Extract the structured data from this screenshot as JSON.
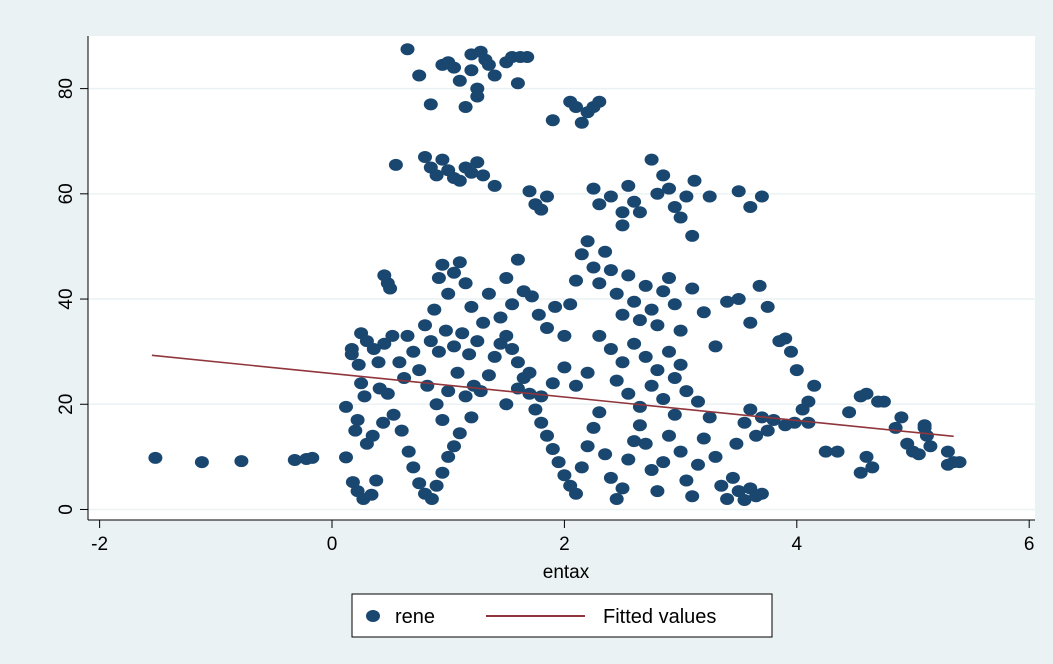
{
  "chart_data": {
    "type": "scatter",
    "title": "",
    "xlabel": "entax",
    "ylabel": "",
    "xlim": [
      -2.1,
      6.05
    ],
    "ylim": [
      -2,
      90
    ],
    "xticks": [
      -2,
      0,
      2,
      4,
      6
    ],
    "yticks": [
      0,
      20,
      40,
      60,
      80
    ],
    "xtick_labels": [
      "-2",
      "0",
      "2",
      "4",
      "6"
    ],
    "ytick_labels": [
      "0",
      "20",
      "40",
      "60",
      "80"
    ],
    "grid": "horizontal",
    "legend_position": "bottom",
    "colors": {
      "plot_bg": "#ffffff",
      "outer_bg": "#eaf2f3",
      "points": "#1a476f",
      "fit": "#90353b",
      "grid": "#eaf2f3"
    },
    "series": [
      {
        "name": "rene",
        "kind": "scatter",
        "points": [
          [
            -1.52,
            9.8
          ],
          [
            -1.12,
            9.0
          ],
          [
            -0.78,
            9.2
          ],
          [
            -0.32,
            9.4
          ],
          [
            -0.22,
            9.6
          ],
          [
            -0.17,
            9.8
          ],
          [
            0.12,
            9.9
          ],
          [
            0.12,
            19.5
          ],
          [
            0.17,
            29.5
          ],
          [
            0.17,
            30.5
          ],
          [
            0.23,
            27.5
          ],
          [
            0.25,
            24.0
          ],
          [
            0.28,
            21.5
          ],
          [
            0.22,
            17.0
          ],
          [
            0.2,
            15.0
          ],
          [
            0.18,
            5.2
          ],
          [
            0.22,
            3.5
          ],
          [
            0.27,
            2.0
          ],
          [
            0.34,
            2.8
          ],
          [
            0.38,
            5.5
          ],
          [
            0.3,
            12.5
          ],
          [
            0.35,
            14.0
          ],
          [
            0.44,
            16.5
          ],
          [
            0.41,
            23.0
          ],
          [
            0.36,
            30.5
          ],
          [
            0.45,
            31.5
          ],
          [
            0.52,
            33.0
          ],
          [
            0.58,
            28.0
          ],
          [
            0.62,
            25.0
          ],
          [
            0.48,
            22.0
          ],
          [
            0.53,
            18.0
          ],
          [
            0.6,
            15.0
          ],
          [
            0.66,
            11.0
          ],
          [
            0.7,
            8.0
          ],
          [
            0.75,
            5.0
          ],
          [
            0.8,
            3.0
          ],
          [
            0.86,
            2.0
          ],
          [
            0.9,
            4.5
          ],
          [
            0.95,
            7.0
          ],
          [
            1.0,
            10.0
          ],
          [
            1.05,
            12.0
          ],
          [
            1.1,
            14.5
          ],
          [
            1.2,
            17.5
          ],
          [
            1.28,
            22.5
          ],
          [
            1.35,
            25.5
          ],
          [
            1.4,
            29.0
          ],
          [
            1.45,
            31.5
          ],
          [
            1.5,
            33.0
          ],
          [
            1.55,
            30.5
          ],
          [
            1.6,
            28.0
          ],
          [
            1.65,
            25.0
          ],
          [
            1.7,
            22.0
          ],
          [
            1.75,
            19.0
          ],
          [
            1.8,
            16.5
          ],
          [
            1.85,
            14.0
          ],
          [
            1.9,
            11.5
          ],
          [
            1.95,
            9.0
          ],
          [
            2.0,
            6.5
          ],
          [
            2.05,
            4.5
          ],
          [
            2.1,
            3.0
          ],
          [
            2.15,
            8.0
          ],
          [
            2.2,
            12.0
          ],
          [
            2.25,
            15.5
          ],
          [
            2.3,
            18.5
          ],
          [
            2.35,
            10.5
          ],
          [
            2.4,
            6.0
          ],
          [
            2.45,
            2.0
          ],
          [
            2.5,
            4.0
          ],
          [
            2.55,
            9.5
          ],
          [
            2.6,
            13.0
          ],
          [
            2.65,
            16.0
          ],
          [
            2.7,
            12.5
          ],
          [
            2.75,
            7.5
          ],
          [
            2.8,
            3.5
          ],
          [
            2.85,
            9.0
          ],
          [
            2.9,
            14.0
          ],
          [
            2.95,
            18.0
          ],
          [
            3.0,
            11.0
          ],
          [
            3.05,
            5.5
          ],
          [
            3.1,
            2.5
          ],
          [
            3.15,
            8.5
          ],
          [
            3.2,
            13.5
          ],
          [
            3.25,
            17.5
          ],
          [
            3.3,
            10.0
          ],
          [
            3.35,
            4.5
          ],
          [
            3.4,
            2.0
          ],
          [
            3.45,
            6.0
          ],
          [
            3.5,
            3.5
          ],
          [
            3.55,
            1.8
          ],
          [
            3.6,
            4.0
          ],
          [
            3.65,
            2.5
          ],
          [
            3.7,
            3.0
          ],
          [
            3.48,
            12.5
          ],
          [
            3.55,
            16.5
          ],
          [
            3.6,
            19.0
          ],
          [
            3.65,
            14.0
          ],
          [
            3.7,
            17.5
          ],
          [
            3.75,
            15.0
          ],
          [
            3.8,
            17.0
          ],
          [
            3.9,
            16.0
          ],
          [
            3.98,
            16.5
          ],
          [
            0.92,
            44.0
          ],
          [
            0.95,
            46.5
          ],
          [
            1.0,
            41.0
          ],
          [
            1.05,
            45.0
          ],
          [
            1.1,
            47.0
          ],
          [
            1.15,
            43.0
          ],
          [
            1.2,
            38.5
          ],
          [
            0.88,
            38.0
          ],
          [
            0.8,
            35.0
          ],
          [
            0.85,
            32.0
          ],
          [
            0.92,
            30.0
          ],
          [
            0.98,
            34.0
          ],
          [
            1.05,
            31.0
          ],
          [
            1.12,
            33.5
          ],
          [
            1.18,
            29.5
          ],
          [
            1.25,
            32.0
          ],
          [
            1.3,
            35.5
          ],
          [
            1.35,
            41.0
          ],
          [
            1.45,
            36.5
          ],
          [
            1.5,
            44.0
          ],
          [
            1.55,
            39.0
          ],
          [
            1.6,
            47.5
          ],
          [
            1.65,
            41.5
          ],
          [
            1.72,
            40.5
          ],
          [
            1.78,
            37.0
          ],
          [
            1.85,
            34.5
          ],
          [
            1.92,
            38.5
          ],
          [
            2.0,
            33.0
          ],
          [
            2.05,
            39.0
          ],
          [
            2.1,
            43.5
          ],
          [
            2.15,
            48.5
          ],
          [
            2.2,
            51.0
          ],
          [
            2.25,
            46.0
          ],
          [
            2.3,
            43.0
          ],
          [
            2.35,
            49.0
          ],
          [
            2.4,
            45.5
          ],
          [
            2.45,
            41.0
          ],
          [
            2.5,
            37.0
          ],
          [
            2.55,
            44.5
          ],
          [
            2.6,
            39.5
          ],
          [
            2.65,
            36.0
          ],
          [
            2.7,
            42.5
          ],
          [
            2.75,
            38.0
          ],
          [
            2.8,
            35.0
          ],
          [
            2.85,
            41.5
          ],
          [
            2.9,
            44.0
          ],
          [
            2.95,
            39.0
          ],
          [
            3.0,
            34.0
          ],
          [
            3.1,
            42.0
          ],
          [
            3.2,
            37.5
          ],
          [
            3.3,
            31.0
          ],
          [
            3.4,
            39.5
          ],
          [
            3.5,
            40.0
          ],
          [
            3.6,
            35.5
          ],
          [
            3.68,
            42.5
          ],
          [
            3.75,
            38.5
          ],
          [
            2.3,
            33.0
          ],
          [
            2.4,
            30.5
          ],
          [
            2.5,
            28.0
          ],
          [
            2.6,
            31.5
          ],
          [
            2.7,
            29.0
          ],
          [
            2.8,
            26.5
          ],
          [
            2.9,
            30.0
          ],
          [
            3.0,
            27.5
          ],
          [
            2.2,
            26.0
          ],
          [
            2.1,
            23.5
          ],
          [
            2.0,
            27.0
          ],
          [
            1.9,
            24.0
          ],
          [
            1.8,
            21.5
          ],
          [
            1.7,
            26.0
          ],
          [
            1.6,
            23.0
          ],
          [
            1.5,
            20.0
          ],
          [
            2.45,
            24.5
          ],
          [
            2.55,
            22.0
          ],
          [
            2.65,
            19.5
          ],
          [
            2.75,
            23.5
          ],
          [
            2.85,
            21.0
          ],
          [
            2.95,
            25.0
          ],
          [
            3.05,
            22.5
          ],
          [
            3.15,
            20.5
          ],
          [
            0.45,
            44.5
          ],
          [
            0.48,
            43.0
          ],
          [
            0.5,
            42.0
          ],
          [
            0.3,
            32.0
          ],
          [
            0.4,
            28.0
          ],
          [
            0.25,
            33.5
          ],
          [
            0.65,
            33.0
          ],
          [
            0.7,
            30.0
          ],
          [
            0.75,
            26.5
          ],
          [
            0.82,
            23.5
          ],
          [
            0.9,
            20.0
          ],
          [
            0.95,
            17.0
          ],
          [
            1.0,
            22.5
          ],
          [
            1.08,
            26.0
          ],
          [
            1.15,
            21.5
          ],
          [
            1.22,
            23.5
          ],
          [
            0.55,
            65.5
          ],
          [
            0.8,
            67.0
          ],
          [
            0.85,
            65.0
          ],
          [
            0.9,
            63.5
          ],
          [
            0.95,
            66.5
          ],
          [
            1.0,
            64.5
          ],
          [
            1.05,
            63.0
          ],
          [
            1.1,
            62.5
          ],
          [
            1.15,
            65.0
          ],
          [
            1.2,
            64.0
          ],
          [
            1.25,
            66.0
          ],
          [
            1.3,
            63.5
          ],
          [
            1.4,
            61.5
          ],
          [
            1.7,
            60.5
          ],
          [
            1.75,
            58.0
          ],
          [
            1.8,
            57.0
          ],
          [
            1.85,
            59.5
          ],
          [
            2.25,
            61.0
          ],
          [
            2.3,
            58.0
          ],
          [
            2.4,
            59.5
          ],
          [
            2.5,
            56.5
          ],
          [
            2.55,
            61.5
          ],
          [
            2.6,
            58.5
          ],
          [
            2.65,
            56.5
          ],
          [
            2.75,
            66.5
          ],
          [
            2.8,
            60.0
          ],
          [
            2.85,
            63.5
          ],
          [
            2.9,
            61.0
          ],
          [
            2.95,
            57.5
          ],
          [
            3.0,
            55.5
          ],
          [
            3.05,
            59.5
          ],
          [
            3.12,
            62.5
          ],
          [
            3.25,
            59.5
          ],
          [
            3.5,
            60.5
          ],
          [
            3.6,
            57.5
          ],
          [
            3.7,
            59.5
          ],
          [
            3.1,
            52.0
          ],
          [
            2.5,
            54.0
          ],
          [
            0.65,
            87.5
          ],
          [
            0.75,
            82.5
          ],
          [
            0.85,
            77.0
          ],
          [
            0.95,
            84.5
          ],
          [
            1.0,
            85.0
          ],
          [
            1.05,
            84.0
          ],
          [
            1.1,
            81.5
          ],
          [
            1.15,
            76.5
          ],
          [
            1.2,
            83.5
          ],
          [
            1.25,
            80.0
          ],
          [
            1.28,
            87.0
          ],
          [
            1.32,
            85.5
          ],
          [
            1.35,
            84.5
          ],
          [
            1.4,
            82.5
          ],
          [
            1.5,
            85.0
          ],
          [
            1.55,
            86.0
          ],
          [
            1.6,
            81.0
          ],
          [
            1.62,
            86.0
          ],
          [
            1.68,
            86.0
          ],
          [
            1.25,
            78.5
          ],
          [
            1.2,
            86.5
          ],
          [
            1.9,
            74.0
          ],
          [
            2.05,
            77.5
          ],
          [
            2.1,
            76.5
          ],
          [
            2.15,
            73.5
          ],
          [
            2.2,
            75.5
          ],
          [
            2.25,
            76.5
          ],
          [
            2.3,
            77.5
          ],
          [
            4.1,
            16.5
          ],
          [
            4.25,
            11.0
          ],
          [
            4.35,
            11.0
          ],
          [
            4.15,
            23.5
          ],
          [
            4.1,
            20.5
          ],
          [
            4.05,
            19.0
          ],
          [
            3.95,
            30.0
          ],
          [
            3.9,
            32.5
          ],
          [
            3.85,
            32.0
          ],
          [
            4.0,
            26.5
          ],
          [
            4.45,
            18.5
          ],
          [
            4.55,
            21.5
          ],
          [
            4.6,
            22.0
          ],
          [
            4.7,
            20.5
          ],
          [
            4.75,
            20.5
          ],
          [
            4.6,
            10.0
          ],
          [
            4.65,
            8.0
          ],
          [
            4.55,
            7.0
          ],
          [
            4.85,
            15.5
          ],
          [
            4.9,
            17.5
          ],
          [
            4.95,
            12.5
          ],
          [
            5.0,
            11.0
          ],
          [
            5.05,
            10.5
          ],
          [
            5.1,
            15.5
          ],
          [
            5.12,
            14.0
          ],
          [
            5.15,
            12.0
          ],
          [
            5.3,
            11.0
          ],
          [
            5.35,
            9.0
          ],
          [
            5.3,
            8.5
          ],
          [
            5.4,
            9.0
          ],
          [
            5.1,
            16.0
          ]
        ]
      },
      {
        "name": "Fitted values",
        "kind": "line",
        "points": [
          [
            -1.55,
            29.3
          ],
          [
            5.35,
            13.9
          ]
        ]
      }
    ]
  }
}
